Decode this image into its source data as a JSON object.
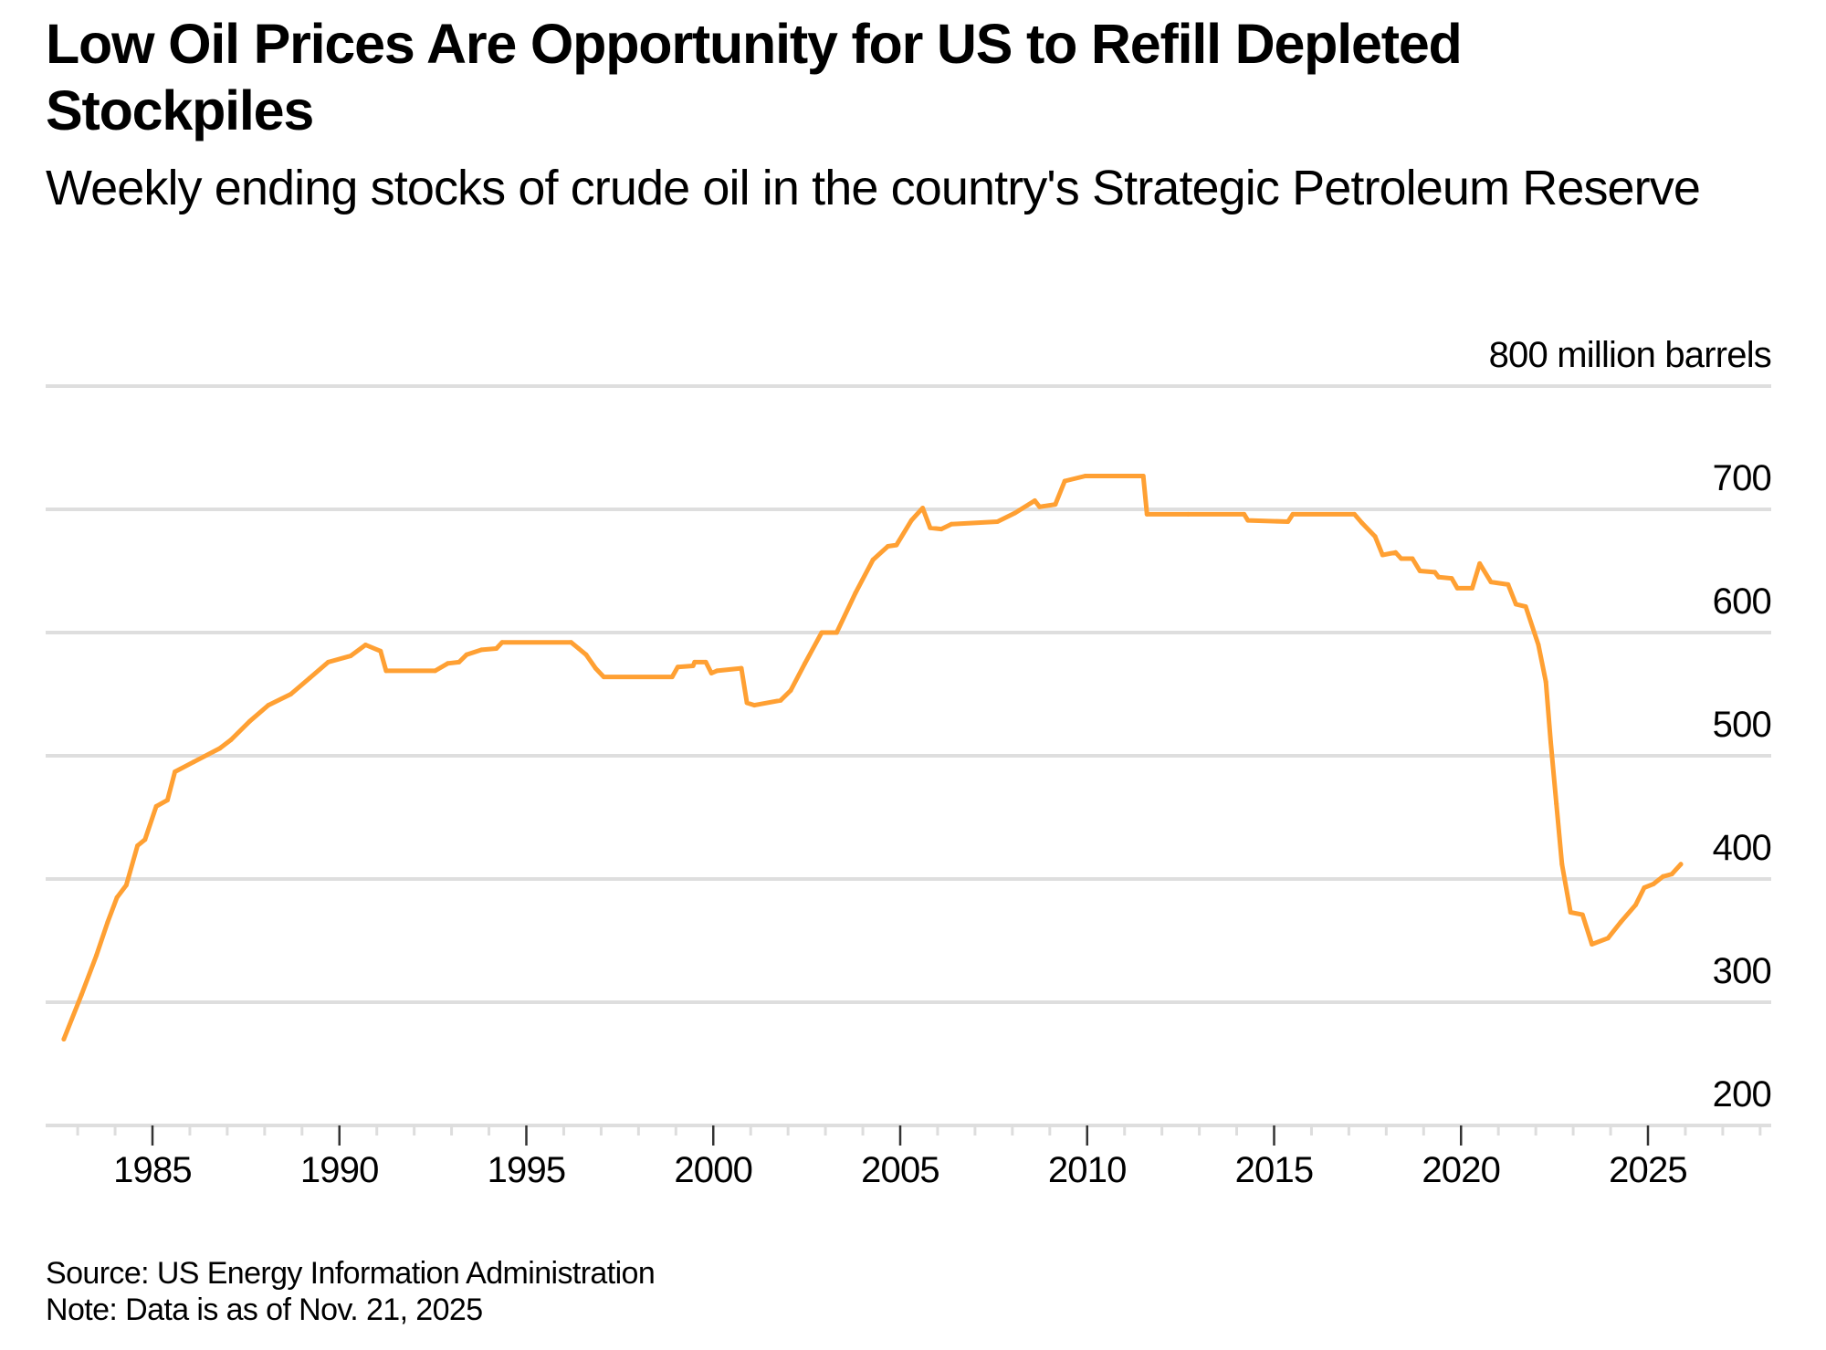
{
  "header": {
    "title": "Low Oil Prices Are Opportunity for US to Refill Depleted Stockpiles",
    "subtitle": "Weekly ending stocks of crude oil in the country's Strategic Petroleum Reserve"
  },
  "footer": {
    "source": "Source: US Energy Information Administration",
    "note": "Note: Data is as of Nov. 21, 2025"
  },
  "colors": {
    "line": "#FFA033",
    "grid": "#DEDEDE",
    "major_tick": "#333333",
    "minor_tick": "#DDDDDD",
    "text": "#000000"
  },
  "chart_data": {
    "type": "line",
    "title": "Low Oil Prices Are Opportunity for US to Refill Depleted Stockpiles",
    "subtitle": "Weekly ending stocks of crude oil in the country's Strategic Petroleum Reserve",
    "xlabel": "",
    "ylabel": "million barrels",
    "y_unit_label": "800 million barrels",
    "xlim": [
      1982.2,
      2028.3
    ],
    "ylim": [
      200,
      800
    ],
    "yticks": [
      200,
      300,
      400,
      500,
      600,
      700,
      800
    ],
    "ytick_labels": [
      "200",
      "300",
      "400",
      "500",
      "600",
      "700",
      "800 million barrels"
    ],
    "xticks": [
      1985,
      1990,
      1995,
      2000,
      2005,
      2010,
      2015,
      2020,
      2025
    ],
    "xtick_labels": [
      "1985",
      "1990",
      "1995",
      "2000",
      "2005",
      "2010",
      "2015",
      "2020",
      "2025"
    ],
    "minor_xticks_every_year": true,
    "grid": true,
    "legend": "none",
    "y_axis_position": "right",
    "series": [
      {
        "name": "Strategic Petroleum Reserve stocks",
        "x": [
          1982.63,
          1983.1,
          1983.5,
          1983.8,
          1984.05,
          1984.3,
          1984.6,
          1984.8,
          1985.1,
          1985.4,
          1985.6,
          1986.1,
          1986.8,
          1987.1,
          1987.6,
          1988.1,
          1988.7,
          1989.2,
          1989.7,
          1990.3,
          1990.7,
          1991.1,
          1991.25,
          1992.56,
          1992.9,
          1993.2,
          1993.4,
          1993.8,
          1994.2,
          1994.35,
          1996.2,
          1996.4,
          1996.6,
          1996.85,
          1997.07,
          1998.9,
          1999.05,
          1999.46,
          1999.5,
          1999.8,
          1999.95,
          2000.1,
          2000.75,
          2000.9,
          2001.1,
          2001.8,
          2002.07,
          2002.45,
          2002.9,
          2003.3,
          2003.8,
          2004.27,
          2004.67,
          2004.9,
          2005.3,
          2005.6,
          2005.8,
          2006.1,
          2006.37,
          2007.6,
          2008.07,
          2008.6,
          2008.73,
          2009.15,
          2009.4,
          2009.95,
          2011.5,
          2011.6,
          2012.7,
          2014.2,
          2014.3,
          2015.37,
          2015.5,
          2017.15,
          2017.35,
          2017.7,
          2017.9,
          2018.25,
          2018.4,
          2018.7,
          2018.9,
          2019.3,
          2019.4,
          2019.75,
          2019.9,
          2020.3,
          2020.5,
          2020.8,
          2021.26,
          2021.47,
          2021.73,
          2022.07,
          2022.27,
          2022.4,
          2022.55,
          2022.7,
          2022.93,
          2023.25,
          2023.5,
          2023.93,
          2024.27,
          2024.67,
          2024.9,
          2025.15,
          2025.4,
          2025.64,
          2025.88
        ],
        "values": [
          270,
          306,
          338,
          365,
          385,
          395,
          427,
          432,
          459,
          464,
          487,
          495,
          506,
          513,
          528,
          541,
          550,
          563,
          576,
          581,
          590,
          585,
          569,
          569,
          575,
          576,
          582,
          586,
          587,
          592,
          592,
          587,
          582,
          571,
          564,
          564,
          572,
          573,
          576,
          576,
          567,
          569,
          571,
          543,
          541,
          545,
          553,
          575,
          600,
          600,
          632,
          659,
          670,
          671,
          691,
          701,
          685,
          684,
          688,
          690,
          697,
          707,
          702,
          704,
          723,
          727,
          727,
          696,
          696,
          696,
          691,
          690,
          696,
          696,
          689,
          678,
          663,
          665,
          660,
          660,
          650,
          649,
          645,
          644,
          636,
          636,
          656,
          641,
          639,
          623,
          621,
          590,
          560,
          511,
          461,
          412,
          373,
          371,
          347,
          352,
          365,
          379,
          393,
          396,
          402,
          404,
          412
        ]
      }
    ]
  }
}
